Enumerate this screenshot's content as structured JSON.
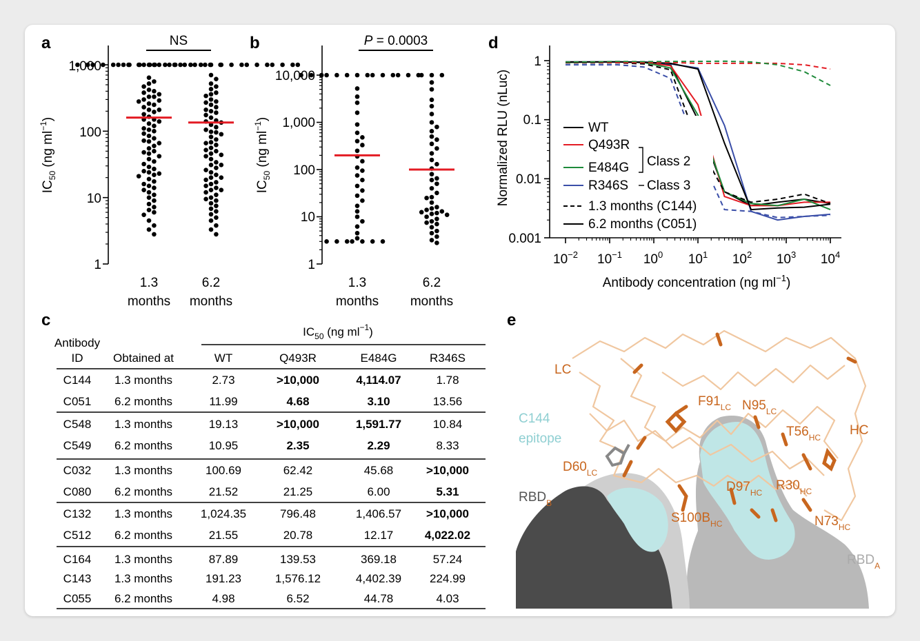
{
  "panel_labels": {
    "a": "a",
    "b": "b",
    "c": "c",
    "d": "d",
    "e": "e"
  },
  "chart_data": [
    {
      "panel": "a",
      "type": "scatter",
      "ylabel": "IC",
      "ylabel_sub": "50",
      "ylabel_units": " (ng ml",
      "ylabel_sup": "−1",
      "ylabel_close": ")",
      "yscale": "log",
      "ylim": [
        1,
        1000
      ],
      "yticks": [
        "1",
        "10",
        "100",
        "1,000"
      ],
      "categories": [
        {
          "line1": "1.3",
          "line2": "months"
        },
        {
          "line1": "6.2",
          "line2": "months"
        }
      ],
      "significance": "NS",
      "medians": [
        160,
        135
      ],
      "median_color": "#e31b23",
      "series": [
        {
          "values": [
            1000,
            1000,
            1000,
            1000,
            1000,
            1000,
            1000,
            1000,
            1000,
            1000,
            1000,
            1000,
            1000,
            1000,
            1000,
            1000,
            1000,
            1000,
            1000,
            1000,
            640,
            520,
            470,
            420,
            400,
            360,
            330,
            300,
            280,
            260,
            250,
            230,
            210,
            195,
            180,
            165,
            150,
            140,
            130,
            120,
            110,
            100,
            92,
            85,
            78,
            72,
            66,
            60,
            55,
            50,
            46,
            42,
            38,
            35,
            32,
            29,
            27,
            25,
            23,
            21,
            19,
            17.5,
            16,
            15,
            14,
            13,
            12,
            11,
            10,
            9,
            8,
            7.2,
            6.5,
            6,
            5.5,
            4.5,
            3.8,
            3.3,
            2.8,
            22,
            48,
            70,
            105,
            150,
            210,
            290,
            380,
            560,
            330,
            24
          ]
        },
        {
          "values": [
            1000,
            1000,
            1000,
            1000,
            1000,
            1000,
            1000,
            1000,
            1000,
            1000,
            1000,
            1000,
            1000,
            1000,
            1000,
            1000,
            1000,
            1000,
            1000,
            1000,
            700,
            610,
            520,
            470,
            430,
            380,
            340,
            300,
            270,
            250,
            230,
            210,
            190,
            175,
            160,
            145,
            135,
            125,
            115,
            105,
            98,
            90,
            82,
            75,
            68,
            62,
            56,
            50,
            46,
            42,
            38,
            34,
            31,
            28,
            26,
            24,
            22,
            20,
            18.5,
            17,
            16,
            15,
            14,
            13,
            12,
            11,
            10,
            9,
            8.2,
            7.5,
            6.8,
            6.2,
            5.6,
            5,
            4.5,
            3.8,
            3.3,
            2.8,
            20,
            44,
            66,
            96,
            140,
            200,
            280,
            360,
            52,
            31,
            13,
            9.5
          ]
        }
      ]
    },
    {
      "panel": "b",
      "type": "scatter",
      "ylabel": "IC",
      "ylabel_sub": "50",
      "ylabel_units": " (ng ml",
      "ylabel_sup": "−1",
      "ylabel_close": ")",
      "yscale": "log",
      "ylim": [
        1,
        10000
      ],
      "yticks": [
        "1",
        "10",
        "100",
        "1,000",
        "10,000"
      ],
      "categories": [
        {
          "line1": "1.3",
          "line2": "months"
        },
        {
          "line1": "6.2",
          "line2": "months"
        }
      ],
      "significance_p": "P",
      "significance_value": " = 0.0003",
      "medians": [
        200,
        100
      ],
      "median_color": "#e31b23",
      "series": [
        {
          "values": [
            10000,
            10000,
            10000,
            10000,
            10000,
            10000,
            10000,
            10000,
            10000,
            10000,
            10000,
            10000,
            10000,
            10000,
            5200,
            3500,
            2600,
            1600,
            900,
            600,
            480,
            400,
            330,
            250,
            190,
            150,
            110,
            95,
            75,
            60,
            45,
            36,
            28,
            22,
            17,
            13,
            10,
            8,
            6.2,
            4.5,
            3.5,
            3,
            3,
            3,
            3,
            3,
            3,
            3
          ]
        },
        {
          "values": [
            10000,
            10000,
            10000,
            7000,
            5000,
            3000,
            2200,
            1500,
            1000,
            800,
            650,
            500,
            430,
            350,
            280,
            220,
            160,
            130,
            105,
            80,
            65,
            50,
            40,
            32,
            26,
            20,
            16,
            14,
            13,
            12.5,
            12,
            11.5,
            11,
            10,
            9,
            8,
            7.5,
            7,
            6,
            5,
            4.5,
            3.8,
            3.2,
            2.8,
            15,
            25,
            60
          ]
        }
      ]
    },
    {
      "panel": "d",
      "type": "line",
      "title": "",
      "xlabel": "Antibody concentration (ng ml",
      "xlabel_sup": "−1",
      "xlabel_close": ")",
      "ylabel": "Normalized RLU (nLuc)",
      "xscale": "log",
      "yscale": "log",
      "xlim": [
        0.01,
        10000
      ],
      "ylim": [
        0.001,
        1
      ],
      "xticks": [
        {
          "base": "10",
          "exp": "−2"
        },
        {
          "base": "10",
          "exp": "−1"
        },
        {
          "base": "10",
          "exp": "0"
        },
        {
          "base": "10",
          "exp": "1"
        },
        {
          "base": "10",
          "exp": "2"
        },
        {
          "base": "10",
          "exp": "3"
        },
        {
          "base": "10",
          "exp": "4"
        }
      ],
      "yticks": [
        "0.001",
        "0.01",
        "0.1",
        "1"
      ],
      "x": [
        0.01,
        0.04,
        0.15,
        0.6,
        2.4,
        10,
        40,
        160,
        640,
        2560,
        10000
      ],
      "series": [
        {
          "name": "WT",
          "color": "#000000",
          "dash": "solid",
          "antibody": "C144",
          "values": [
            0.95,
            0.95,
            0.95,
            0.93,
            0.85,
            0.1,
            0.006,
            0.0035,
            0.004,
            0.0045,
            0.0038
          ]
        },
        {
          "name": "Q493R",
          "color": "#e31b23",
          "dash": "solid",
          "antibody": "C144",
          "values": [
            0.93,
            0.95,
            0.95,
            0.93,
            0.82,
            0.18,
            0.005,
            0.0035,
            0.0035,
            0.004,
            0.004
          ]
        },
        {
          "name": "E484G",
          "color": "#1e8a3a",
          "dash": "solid",
          "antibody": "C144",
          "values": [
            0.93,
            0.95,
            0.96,
            0.93,
            0.75,
            0.12,
            0.006,
            0.0038,
            0.0035,
            0.0045,
            0.003
          ]
        },
        {
          "name": "R346S",
          "color": "#3a4ea8",
          "dash": "solid",
          "antibody": "C144",
          "values": [
            0.95,
            0.95,
            0.95,
            0.95,
            0.88,
            0.75,
            0.08,
            0.0028,
            0.002,
            0.0023,
            0.0025
          ]
        },
        {
          "name": "WT",
          "color": "#000000",
          "dash": "dashed",
          "antibody": "C144",
          "values": [
            0.92,
            0.92,
            0.92,
            0.88,
            0.7,
            0.04,
            0.006,
            0.004,
            0.0045,
            0.0055,
            0.0038
          ]
        },
        {
          "name": "WT",
          "color": "#000000",
          "dash": "solid",
          "antibody": "C051",
          "values": [
            0.95,
            0.95,
            0.95,
            0.94,
            0.9,
            0.72,
            0.04,
            0.003,
            0.0032,
            0.0033,
            0.0037
          ]
        },
        {
          "name": "Q493R",
          "color": "#e31b23",
          "dash": "dashed",
          "antibody": "C144",
          "values": [
            0.94,
            0.94,
            0.93,
            0.92,
            0.93,
            0.9,
            0.9,
            0.9,
            0.9,
            0.85,
            0.72
          ]
        },
        {
          "name": "E484G",
          "color": "#1e8a3a",
          "dash": "dashed",
          "antibody": "C144",
          "values": [
            0.95,
            0.95,
            0.97,
            0.96,
            0.97,
            0.97,
            0.98,
            0.95,
            0.85,
            0.65,
            0.38
          ]
        },
        {
          "name": "R346S",
          "color": "#3a4ea8",
          "dash": "dashed",
          "antibody": "C144",
          "values": [
            0.85,
            0.85,
            0.85,
            0.78,
            0.5,
            0.03,
            0.003,
            0.0028,
            0.0022,
            0.0023,
            0.0024
          ]
        }
      ],
      "legend": [
        {
          "label": "WT",
          "color": "#000000",
          "dash": "solid"
        },
        {
          "label": "Q493R",
          "color": "#e31b23",
          "dash": "solid"
        },
        {
          "label": "E484G",
          "color": "#1e8a3a",
          "dash": "solid"
        },
        {
          "label": "R346S",
          "color": "#3a4ea8",
          "dash": "solid"
        },
        {
          "label": "1.3 months (C144)",
          "color": "#000000",
          "dash": "dashed"
        },
        {
          "label": "6.2 months (C051)",
          "color": "#000000",
          "dash": "solid"
        }
      ],
      "class_labels": [
        "Class 2",
        "Class 3"
      ],
      "legend_placement": "bottom-left"
    },
    {
      "panel": "c",
      "type": "table",
      "group_header": "IC",
      "group_header_sub": "50",
      "group_header_units": " (ng ml",
      "group_header_sup": "−1",
      "group_header_close": ")",
      "columns": [
        {
          "line1": "Antibody",
          "line2": "ID"
        },
        {
          "line1": "",
          "line2": "Obtained at"
        },
        {
          "line1": "",
          "line2": "WT"
        },
        {
          "line1": "",
          "line2": "Q493R"
        },
        {
          "line1": "",
          "line2": "E484G"
        },
        {
          "line1": "",
          "line2": "R346S"
        }
      ],
      "rows": [
        {
          "id": "C144",
          "at": "1.3 months",
          "wt": "2.73",
          "q": ">10,000",
          "e": "4,114.07",
          "r": "1.78",
          "bold": [
            false,
            true,
            true,
            false
          ]
        },
        {
          "id": "C051",
          "at": "6.2 months",
          "wt": "11.99",
          "q": "4.68",
          "e": "3.10",
          "r": "13.56",
          "bold": [
            false,
            true,
            true,
            false
          ]
        },
        {
          "id": "C548",
          "at": "1.3 months",
          "wt": "19.13",
          "q": ">10,000",
          "e": "1,591.77",
          "r": "10.84",
          "bold": [
            false,
            true,
            true,
            false
          ]
        },
        {
          "id": "C549",
          "at": "6.2 months",
          "wt": "10.95",
          "q": "2.35",
          "e": "2.29",
          "r": "8.33",
          "bold": [
            false,
            true,
            true,
            false
          ]
        },
        {
          "id": "C032",
          "at": "1.3 months",
          "wt": "100.69",
          "q": "62.42",
          "e": "45.68",
          "r": ">10,000",
          "bold": [
            false,
            false,
            false,
            true
          ]
        },
        {
          "id": "C080",
          "at": "6.2 months",
          "wt": "21.52",
          "q": "21.25",
          "e": "6.00",
          "r": "5.31",
          "bold": [
            false,
            false,
            false,
            true
          ]
        },
        {
          "id": "C132",
          "at": "1.3 months",
          "wt": "1,024.35",
          "q": "796.48",
          "e": "1,406.57",
          "r": ">10,000",
          "bold": [
            false,
            false,
            false,
            true
          ]
        },
        {
          "id": "C512",
          "at": "6.2 months",
          "wt": "21.55",
          "q": "20.78",
          "e": "12.17",
          "r": "4,022.02",
          "bold": [
            false,
            false,
            false,
            true
          ]
        },
        {
          "id": "C164",
          "at": "1.3 months",
          "wt": "87.89",
          "q": "139.53",
          "e": "369.18",
          "r": "57.24",
          "bold": [
            false,
            false,
            false,
            false
          ]
        },
        {
          "id": "C143",
          "at": "1.3 months",
          "wt": "191.23",
          "q": "1,576.12",
          "e": "4,402.39",
          "r": "224.99",
          "bold": [
            false,
            false,
            false,
            false
          ]
        },
        {
          "id": "C055",
          "at": "6.2 months",
          "wt": "4.98",
          "q": "6.52",
          "e": "44.78",
          "r": "4.03",
          "bold": [
            false,
            false,
            false,
            false
          ]
        }
      ]
    }
  ],
  "structure": {
    "labels": {
      "lc": "LC",
      "hc": "HC",
      "epitope_line1": "C144",
      "epitope_line2": "epitope",
      "f91": "F91",
      "f91_sub": "LC",
      "n95": "N95",
      "n95_sub": "LC",
      "t56": "T56",
      "t56_sub": "HC",
      "d60": "D60",
      "d60_sub": "LC",
      "d97": "D97",
      "d97_sub": "HC",
      "r30": "R30",
      "r30_sub": "HC",
      "s100b": "S100B",
      "s100b_sub": "HC",
      "n73": "N73",
      "n73_sub": "HC",
      "rbdb": "RBD",
      "rbdb_sub": "B",
      "rbda": "RBD",
      "rbda_sub": "A"
    },
    "colors": {
      "surface_dark": "#4b4b4b",
      "surface_light": "#b5b5b5",
      "epitope": "#bfe6e6",
      "ribbon": "#f0c7a0",
      "sidechain": "#c8661e"
    }
  }
}
